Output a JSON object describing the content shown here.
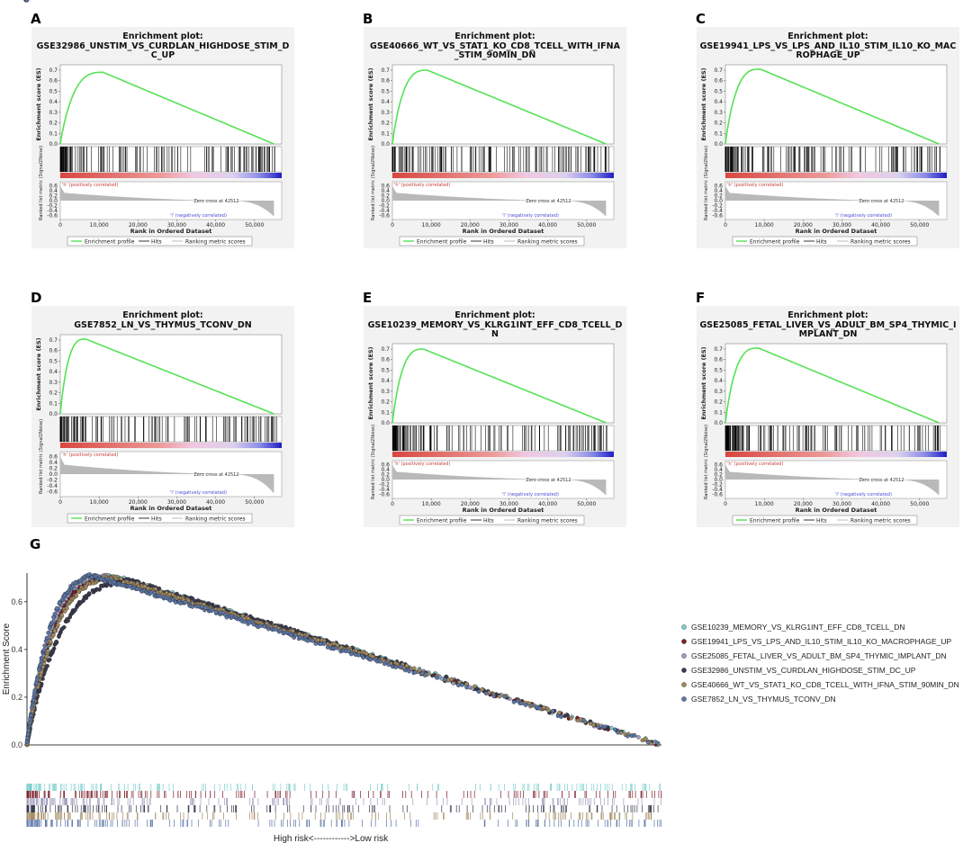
{
  "colors": {
    "es_curve": "#55e255",
    "hits": "#000000",
    "metric_fill": "#b9b9b9",
    "pos_text": "#c63c3c",
    "neg_text": "#4b4bd6",
    "panel_bg": "#f2f2f2"
  },
  "chart_data": [
    {
      "panel": "A",
      "type": "line",
      "title": "Enrichment plot:",
      "subtitle_lines": [
        "GSE32986_UNSTIM_VS_CURDLAN_HIGHDOSE_STIM_D",
        "C_UP"
      ],
      "ylabel": "Enrichment score (ES)",
      "ylabel2": "Ranked list metric (Signal2Noise)",
      "xlabel": "Rank in Ordered Dataset",
      "xlim": [
        0,
        57000
      ],
      "ylim": [
        0,
        0.7
      ],
      "x_ticks": [
        0,
        10000,
        20000,
        30000,
        40000,
        50000
      ],
      "x_tick_labels": [
        "0",
        "10,000",
        "20,000",
        "30,000",
        "40,000",
        "50,000"
      ],
      "y_ticks": [
        0.0,
        0.1,
        0.2,
        0.3,
        0.4,
        0.5,
        0.6,
        0.7
      ],
      "metric_ticks": [
        0.6,
        0.4,
        0.2,
        0.0,
        -0.2,
        -0.4,
        -0.6
      ],
      "zero_cross": "Zero cross at 42512",
      "pos_label": "'h' (positively correlated)",
      "neg_label": "'l' (negatively correlated)",
      "legend": [
        "Enrichment profile",
        "Hits",
        "Ranking metric scores"
      ],
      "peak_x": 11000,
      "peak_y": 0.68
    },
    {
      "panel": "B",
      "type": "line",
      "title": "Enrichment plot:",
      "subtitle_lines": [
        "GSE40666_WT_VS_STAT1_KO_CD8_TCELL_WITH_IFNA",
        "_STIM_90MIN_DN"
      ],
      "ylabel": "Enrichment score (ES)",
      "ylabel2": "Ranked list metric (Signal2Noise)",
      "xlabel": "Rank in Ordered Dataset",
      "xlim": [
        0,
        57000
      ],
      "ylim": [
        0,
        0.7
      ],
      "x_ticks": [
        0,
        10000,
        20000,
        30000,
        40000,
        50000
      ],
      "x_tick_labels": [
        "0",
        "10,000",
        "20,000",
        "30,000",
        "40,000",
        "50,000"
      ],
      "y_ticks": [
        0.0,
        0.1,
        0.2,
        0.3,
        0.4,
        0.5,
        0.6,
        0.7
      ],
      "metric_ticks": [
        0.6,
        0.4,
        0.2,
        0.0,
        -0.2,
        -0.4,
        -0.6
      ],
      "zero_cross": "Zero cross at 42512",
      "pos_label": "'h' (positively correlated)",
      "neg_label": "'l' (negatively correlated)",
      "legend": [
        "Enrichment profile",
        "Hits",
        "Ranking metric scores"
      ],
      "peak_x": 9000,
      "peak_y": 0.7
    },
    {
      "panel": "C",
      "type": "line",
      "title": "Enrichment plot:",
      "subtitle_lines": [
        "GSE19941_LPS_VS_LPS_AND_IL10_STIM_IL10_KO_MAC",
        "ROPHAGE_UP"
      ],
      "ylabel": "Enrichment score (ES)",
      "ylabel2": "Ranked list metric (Signal2Noise)",
      "xlabel": "Rank in Ordered Dataset",
      "xlim": [
        0,
        57000
      ],
      "ylim": [
        0,
        0.7
      ],
      "x_ticks": [
        0,
        10000,
        20000,
        30000,
        40000,
        50000
      ],
      "x_tick_labels": [
        "0",
        "10,000",
        "20,000",
        "30,000",
        "40,000",
        "50,000"
      ],
      "y_ticks": [
        0.0,
        0.1,
        0.2,
        0.3,
        0.4,
        0.5,
        0.6,
        0.7
      ],
      "metric_ticks": [
        0.6,
        0.4,
        0.2,
        0.0,
        -0.2,
        -0.4,
        -0.6
      ],
      "zero_cross": "Zero cross at 42512",
      "pos_label": "'h' (positively correlated)",
      "neg_label": "'l' (negatively correlated)",
      "legend": [
        "Enrichment profile",
        "Hits",
        "Ranking metric scores"
      ],
      "peak_x": 9000,
      "peak_y": 0.71
    },
    {
      "panel": "D",
      "type": "line",
      "title": "Enrichment plot:",
      "subtitle_lines": [
        "GSE7852_LN_VS_THYMUS_TCONV_DN"
      ],
      "ylabel": "Enrichment score (ES)",
      "ylabel2": "Ranked list metric (Signal2Noise)",
      "xlabel": "Rank in Ordered Dataset",
      "xlim": [
        0,
        57000
      ],
      "ylim": [
        0,
        0.7
      ],
      "x_ticks": [
        0,
        10000,
        20000,
        30000,
        40000,
        50000
      ],
      "x_tick_labels": [
        "0",
        "10,000",
        "20,000",
        "30,000",
        "40,000",
        "50,000"
      ],
      "y_ticks": [
        0.0,
        0.1,
        0.2,
        0.3,
        0.4,
        0.5,
        0.6,
        0.7
      ],
      "metric_ticks": [
        0.6,
        0.4,
        0.2,
        0.0,
        -0.2,
        -0.4,
        -0.6
      ],
      "zero_cross": "Zero cross at 42512",
      "pos_label": "'h' (positively correlated)",
      "neg_label": "'l' (negatively correlated)",
      "legend": [
        "Enrichment profile",
        "Hits",
        "Ranking metric scores"
      ],
      "peak_x": 6500,
      "peak_y": 0.71
    },
    {
      "panel": "E",
      "type": "line",
      "title": "Enrichment plot:",
      "subtitle_lines": [
        "GSE10239_MEMORY_VS_KLRG1INT_EFF_CD8_TCELL_D",
        "N"
      ],
      "ylabel": "Enrichment score (ES)",
      "ylabel2": "Ranked list metric (Signal2Noise)",
      "xlabel": "Rank in Ordered Dataset",
      "xlim": [
        0,
        57000
      ],
      "ylim": [
        0,
        0.7
      ],
      "x_ticks": [
        0,
        10000,
        20000,
        30000,
        40000,
        50000
      ],
      "x_tick_labels": [
        "0",
        "10,000",
        "20,000",
        "30,000",
        "40,000",
        "50,000"
      ],
      "y_ticks": [
        0.0,
        0.1,
        0.2,
        0.3,
        0.4,
        0.5,
        0.6,
        0.7
      ],
      "metric_ticks": [
        0.6,
        0.4,
        0.2,
        0.0,
        -0.2,
        -0.4,
        -0.6
      ],
      "zero_cross": "Zero cross at 42512",
      "pos_label": "'h' (positively correlated)",
      "neg_label": "'l' (negatively correlated)",
      "legend": [
        "Enrichment profile",
        "Hits",
        "Ranking metric scores"
      ],
      "peak_x": 8000,
      "peak_y": 0.7
    },
    {
      "panel": "F",
      "type": "line",
      "title": "Enrichment plot:",
      "subtitle_lines": [
        "GSE25085_FETAL_LIVER_VS_ADULT_BM_SP4_THYMIC_I",
        "MPLANT_DN"
      ],
      "ylabel": "Enrichment score (ES)",
      "ylabel2": "Ranked list metric (Signal2Noise)",
      "xlabel": "Rank in Ordered Dataset",
      "xlim": [
        0,
        57000
      ],
      "ylim": [
        0,
        0.7
      ],
      "x_ticks": [
        0,
        10000,
        20000,
        30000,
        40000,
        50000
      ],
      "x_tick_labels": [
        "0",
        "10,000",
        "20,000",
        "30,000",
        "40,000",
        "50,000"
      ],
      "y_ticks": [
        0.0,
        0.1,
        0.2,
        0.3,
        0.4,
        0.5,
        0.6,
        0.7
      ],
      "metric_ticks": [
        0.6,
        0.4,
        0.2,
        0.0,
        -0.2,
        -0.4,
        -0.6
      ],
      "zero_cross": "Zero cross at 42512",
      "pos_label": "'h' (positively correlated)",
      "neg_label": "'l' (negatively correlated)",
      "legend": [
        "Enrichment profile",
        "Hits",
        "Ranking metric scores"
      ],
      "peak_x": 8500,
      "peak_y": 0.71
    },
    {
      "panel": "G",
      "type": "scatter",
      "ylabel": "Enrichment Score",
      "xlabel": "High risk<------------>Low risk",
      "ylim": [
        0,
        0.72
      ],
      "y_ticks": [
        0.0,
        0.2,
        0.4,
        0.6
      ],
      "y_tick_labels": [
        "0.0",
        "0.2",
        "0.4",
        "0.6"
      ],
      "legend_position": "right",
      "series": [
        {
          "name": "GSE10239_MEMORY_VS_KLRG1INT_EFF_CD8_TCELL_DN",
          "color": "#7ecfcf",
          "peak_x": 0.14,
          "peak_y": 0.705
        },
        {
          "name": "GSE19941_LPS_VS_LPS_AND_IL10_STIM_IL10_KO_MACROPHAGE_UP",
          "color": "#7a1f2b",
          "peak_x": 0.13,
          "peak_y": 0.7
        },
        {
          "name": "GSE25085_FETAL_LIVER_VS_ADULT_BM_SP4_THYMIC_IMPLANT_DN",
          "color": "#9e9ebd",
          "peak_x": 0.12,
          "peak_y": 0.71
        },
        {
          "name": "GSE32986_UNSTIM_VS_CURDLAN_HIGHDOSE_STIM_DC_UP",
          "color": "#3a3a4e",
          "peak_x": 0.16,
          "peak_y": 0.69
        },
        {
          "name": "GSE40666_WT_VS_STAT1_KO_CD8_TCELL_WITH_IFNA_STIM_90MIN_DN",
          "color": "#a38a60",
          "peak_x": 0.13,
          "peak_y": 0.705
        },
        {
          "name": "GSE7852_LN_VS_THYMUS_TCONV_DN",
          "color": "#5c76a8",
          "peak_x": 0.1,
          "peak_y": 0.71
        }
      ]
    }
  ]
}
